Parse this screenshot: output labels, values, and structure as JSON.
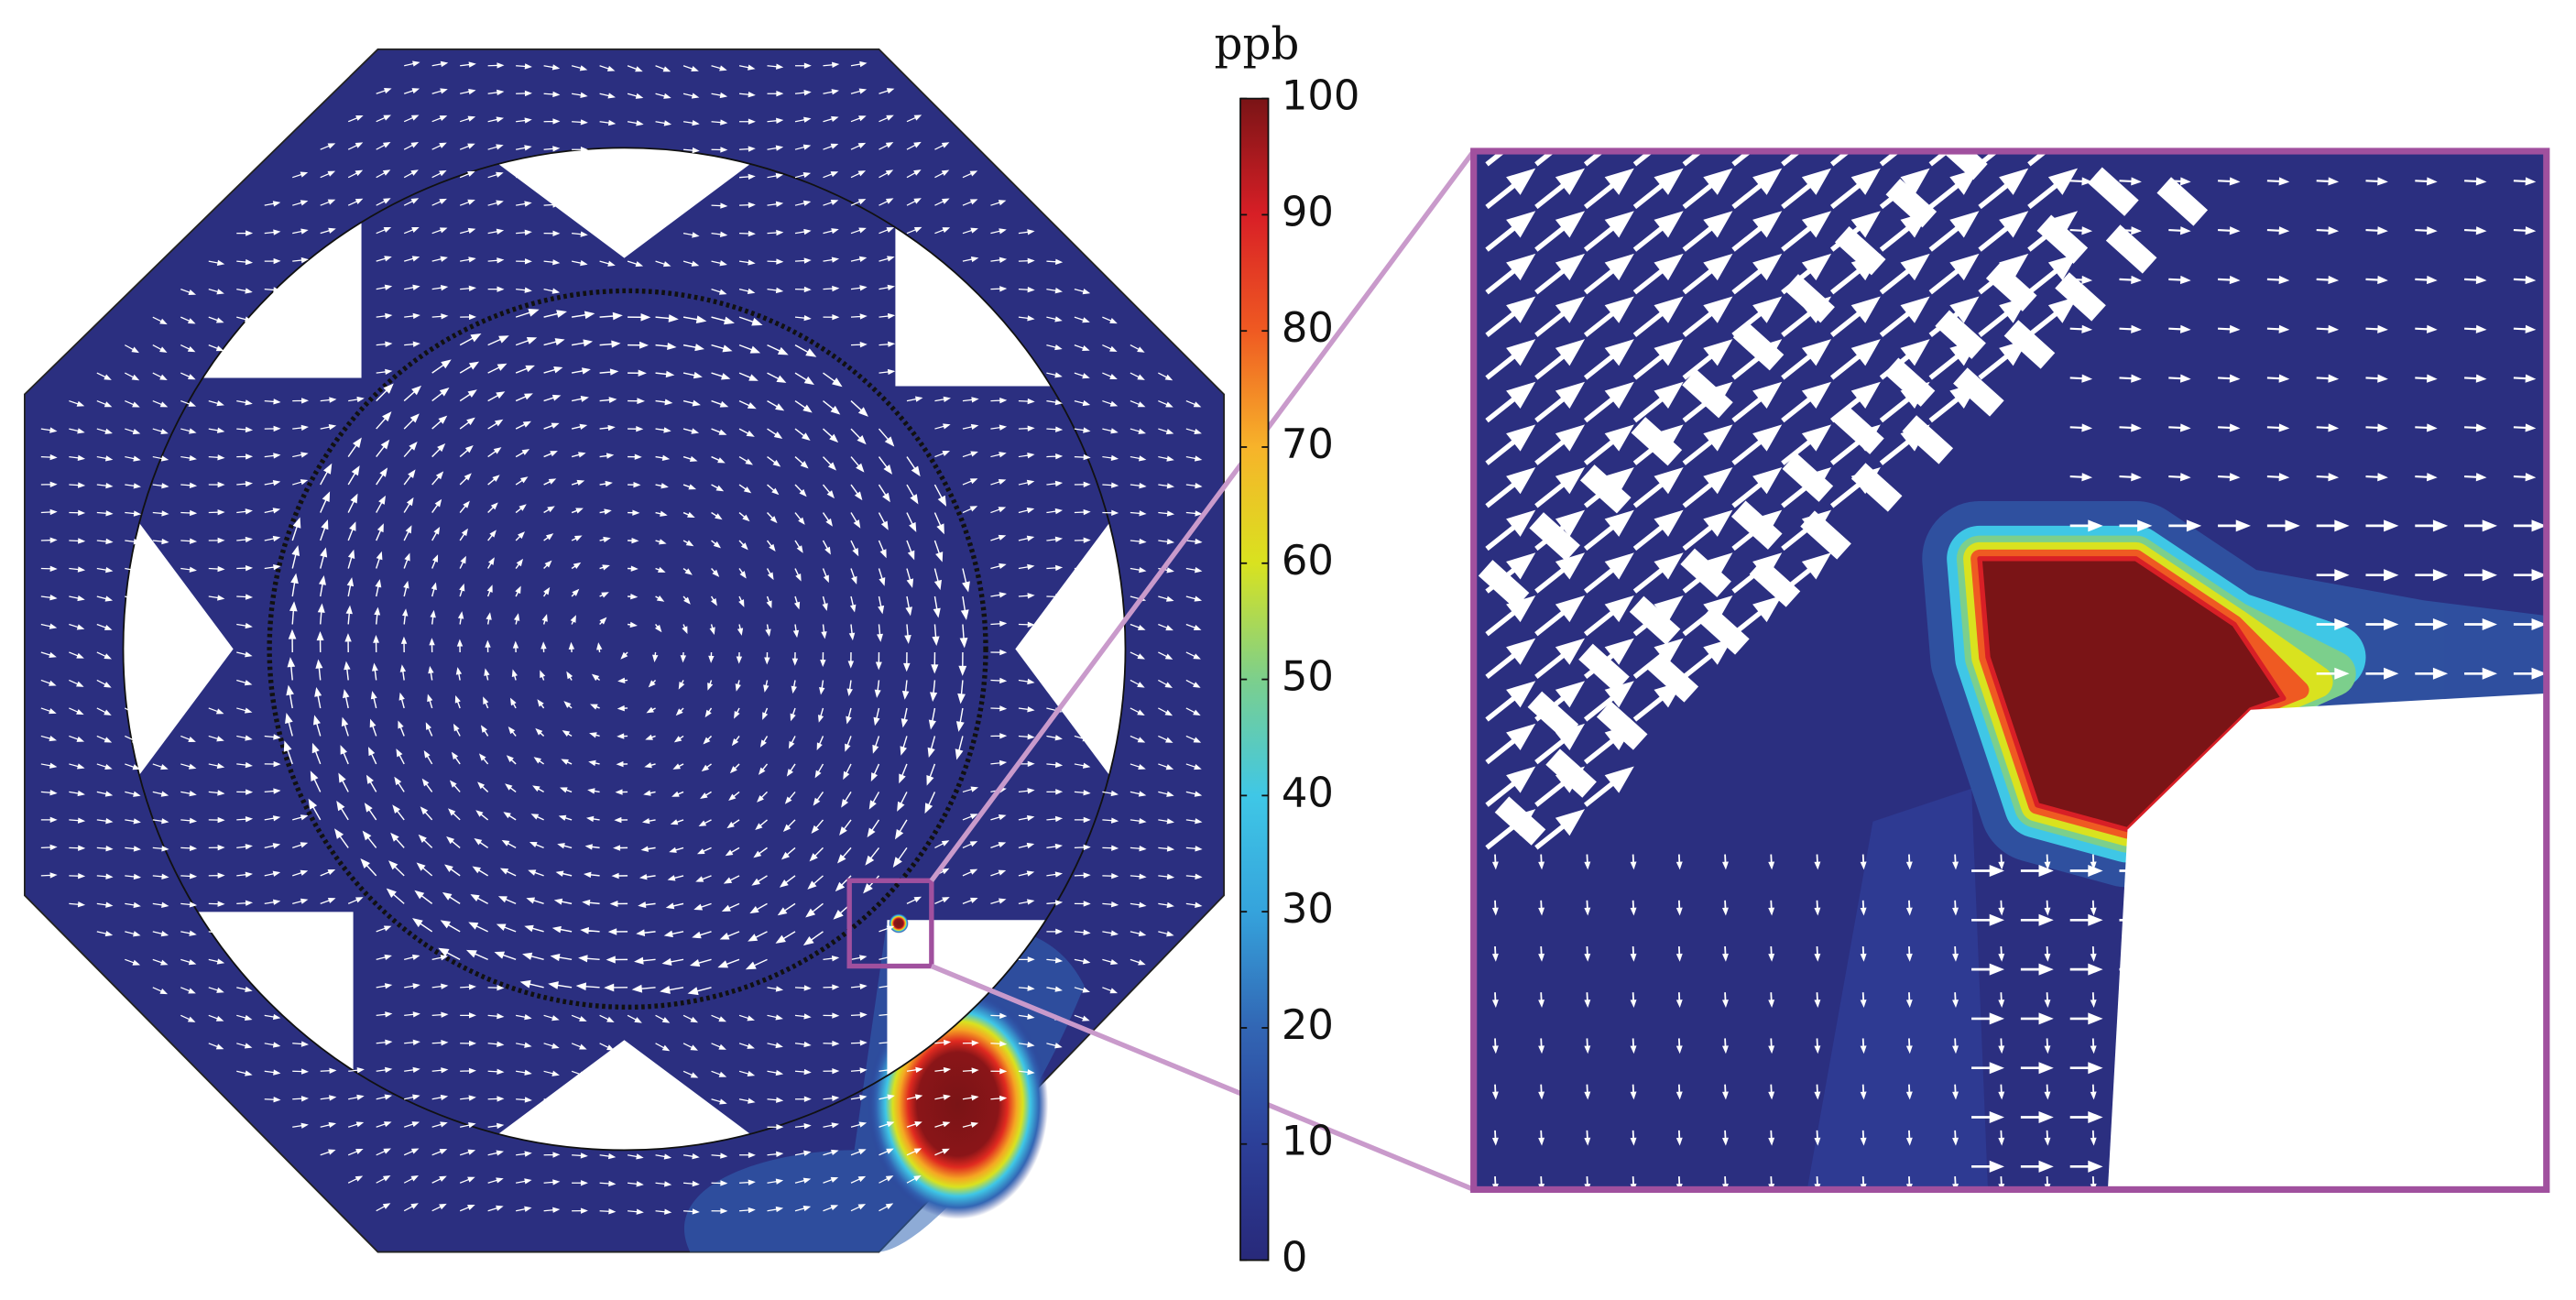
{
  "chart_data": {
    "type": "contour",
    "colorbar_label": "ppb",
    "clim": [
      0,
      100
    ],
    "cticks": [
      0,
      10,
      20,
      30,
      40,
      50,
      60,
      70,
      80,
      90,
      100
    ],
    "colormap": [
      "#28297a",
      "#2c3f98",
      "#3266b4",
      "#35a3dc",
      "#3fc7e6",
      "#7ccf8c",
      "#d9e21f",
      "#f7b32a",
      "#ef5a22",
      "#d81f26",
      "#7a1416"
    ]
  }
}
